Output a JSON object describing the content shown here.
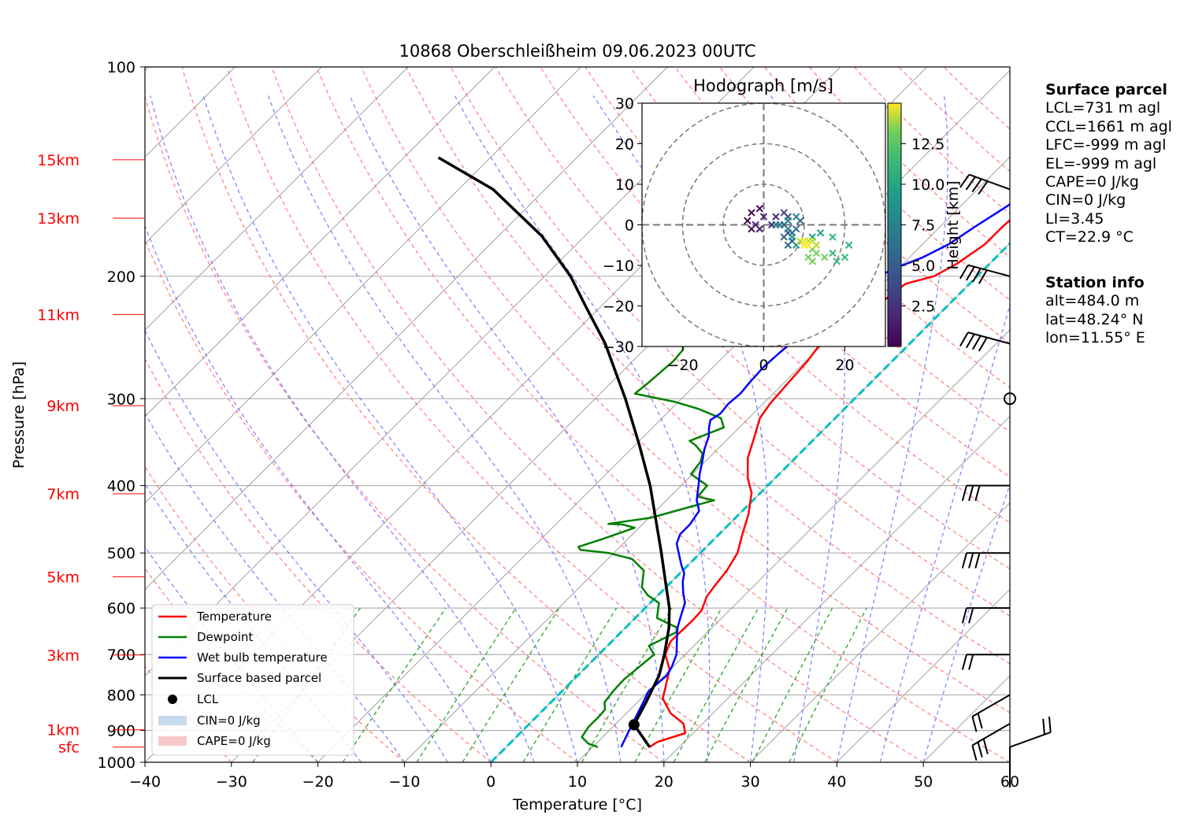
{
  "chart_data": [
    {
      "type": "line",
      "subtype": "skew-T log-p diagram",
      "title": "10868 Oberschleißheim 09.06.2023 00UTC",
      "xlabel": "Temperature [°C]",
      "ylabel": "Pressure [hPa]",
      "xlim": [
        -40,
        60
      ],
      "ylim": [
        1000,
        100
      ],
      "y_scale": "log",
      "grid": true,
      "x_ticks": [
        -40,
        -30,
        -20,
        -10,
        0,
        10,
        20,
        30,
        40,
        50,
        60
      ],
      "y_ticks": [
        100,
        200,
        300,
        400,
        500,
        600,
        700,
        800,
        900,
        1000
      ],
      "height_labels": [
        {
          "label": "15km",
          "p": 136
        },
        {
          "label": "13km",
          "p": 165
        },
        {
          "label": "11km",
          "p": 227
        },
        {
          "label": "9km",
          "p": 307
        },
        {
          "label": "7km",
          "p": 411
        },
        {
          "label": "5km",
          "p": 541
        },
        {
          "label": "3km",
          "p": 701
        },
        {
          "label": "1km",
          "p": 898
        },
        {
          "label": "sfc",
          "p": 951
        }
      ],
      "legend": {
        "position": "lower left",
        "entries": [
          "Temperature",
          "Dewpoint",
          "Wet bulb temperature",
          "Surface based parcel",
          "LCL",
          "CIN=0 J/kg",
          "CAPE=0 J/kg"
        ]
      },
      "colors": {
        "temperature": "#ff0000",
        "dewpoint": "#008000",
        "wetbulb": "#0000ff",
        "parcel": "#000000",
        "isotherm_zero": "#00bfbf",
        "dry_adiabats": "#ff6666",
        "moist_adiabats": "#6666ff",
        "mixing_ratio": "#2ca02c",
        "cin_fill": "#c6dbef",
        "cape_fill": "#f8c8c8"
      },
      "series": [
        {
          "name": "Temperature",
          "points": [
            [
              16.6,
              951
            ],
            [
              16.9,
              935
            ],
            [
              19.1,
              908
            ],
            [
              17.8,
              880
            ],
            [
              15.1,
              850
            ],
            [
              12.5,
              810
            ],
            [
              11.5,
              780
            ],
            [
              9.9,
              735
            ],
            [
              7.7,
              700
            ],
            [
              6.8,
              670
            ],
            [
              6.9,
              625
            ],
            [
              6.8,
              605
            ],
            [
              5.8,
              578
            ],
            [
              5.5,
              560
            ],
            [
              5.1,
              530
            ],
            [
              4.3,
              500
            ],
            [
              2.7,
              470
            ],
            [
              1.1,
              440
            ],
            [
              -1.0,
              410
            ],
            [
              -3.2,
              390
            ],
            [
              -5.5,
              365
            ],
            [
              -7.2,
              340
            ],
            [
              -8.7,
              320
            ],
            [
              -9.2,
              305
            ],
            [
              -9.5,
              285
            ],
            [
              -9.8,
              265
            ],
            [
              -10.3,
              250
            ],
            [
              -8.0,
              240
            ],
            [
              -8.3,
              228
            ],
            [
              -8.0,
              217
            ],
            [
              -7.4,
              205
            ],
            [
              -5.0,
              200
            ],
            [
              -3.8,
              192
            ],
            [
              -2.8,
              180
            ],
            [
              -2.8,
              170
            ],
            [
              -2.5,
              160
            ],
            [
              -1.0,
              153
            ],
            [
              -1.5,
              148
            ],
            [
              0.2,
              142
            ],
            [
              1.3,
              137
            ],
            [
              2.4,
              135
            ]
          ]
        },
        {
          "name": "Dewpoint",
          "points": [
            [
              10.6,
              951
            ],
            [
              9.1,
              940
            ],
            [
              7.6,
              920
            ],
            [
              7.2,
              890
            ],
            [
              7.2,
              860
            ],
            [
              7.1,
              840
            ],
            [
              6.2,
              820
            ],
            [
              5.9,
              790
            ],
            [
              5.8,
              760
            ],
            [
              6.4,
              700
            ],
            [
              4.8,
              680
            ],
            [
              6.4,
              650
            ],
            [
              5.9,
              640
            ],
            [
              2.5,
              620
            ],
            [
              1.0,
              590
            ],
            [
              -1.2,
              575
            ],
            [
              -2.8,
              560
            ],
            [
              -4.5,
              530
            ],
            [
              -7.2,
              510
            ],
            [
              -10.6,
              500
            ],
            [
              -14.2,
              495
            ],
            [
              -14.8,
              490
            ],
            [
              -13.0,
              478
            ],
            [
              -10.5,
              460
            ],
            [
              -12.3,
              455
            ],
            [
              -14.0,
              454
            ],
            [
              -9.8,
              445
            ],
            [
              -4.5,
              420
            ],
            [
              -6.8,
              415
            ],
            [
              -7.0,
              400
            ],
            [
              -10.2,
              385
            ],
            [
              -10.5,
              370
            ],
            [
              -11.2,
              360
            ],
            [
              -13.0,
              350
            ],
            [
              -14.2,
              345
            ],
            [
              -11.8,
              330
            ],
            [
              -13.2,
              320
            ],
            [
              -17.0,
              310
            ],
            [
              -20.5,
              303
            ],
            [
              -26.0,
              295
            ],
            [
              -25.7,
              285
            ],
            [
              -25.3,
              265
            ],
            [
              -25.5,
              255
            ],
            [
              -27.0,
              245
            ],
            [
              -28.0,
              238
            ],
            [
              -26.5,
              232
            ],
            [
              -27.5,
              228
            ],
            [
              -25.8,
              222
            ],
            [
              -25.3,
              210
            ],
            [
              -24.8,
              200
            ],
            [
              -25.0,
              193
            ],
            [
              -26.5,
              190
            ],
            [
              -28.7,
              188
            ],
            [
              -29.5,
              180
            ],
            [
              -30.0,
              175
            ],
            [
              -30.0,
              168
            ],
            [
              -29.5,
              160
            ],
            [
              -29.0,
              152
            ],
            [
              -28.0,
              148
            ],
            [
              -27.5,
              145
            ],
            [
              -26.5,
              140
            ],
            [
              -25.2,
              135
            ]
          ]
        },
        {
          "name": "Wet bulb temperature",
          "points": [
            [
              13.3,
              951
            ],
            [
              12.7,
              920
            ],
            [
              11.9,
              880
            ],
            [
              10.9,
              830
            ],
            [
              10.0,
              790
            ],
            [
              10.3,
              750
            ],
            [
              9.9,
              730
            ],
            [
              9.0,
              700
            ],
            [
              7.0,
              660
            ],
            [
              6.0,
              640
            ],
            [
              5.2,
              620
            ],
            [
              4.0,
              590
            ],
            [
              2.6,
              570
            ],
            [
              1.3,
              550
            ],
            [
              0.5,
              535
            ],
            [
              -1.0,
              518
            ],
            [
              -2.5,
              500
            ],
            [
              -3.8,
              485
            ],
            [
              -4.5,
              470
            ],
            [
              -4.5,
              455
            ],
            [
              -5.0,
              435
            ],
            [
              -6.5,
              420
            ],
            [
              -8.0,
              400
            ],
            [
              -9.2,
              385
            ],
            [
              -10.3,
              370
            ],
            [
              -11.5,
              355
            ],
            [
              -12.5,
              340
            ],
            [
              -13.5,
              330
            ],
            [
              -14.2,
              322
            ],
            [
              -13.8,
              315
            ],
            [
              -14.0,
              305
            ],
            [
              -13.8,
              295
            ],
            [
              -14.0,
              285
            ],
            [
              -14.2,
              270
            ],
            [
              -14.0,
              258
            ],
            [
              -13.8,
              250
            ],
            [
              -11.5,
              240
            ],
            [
              -12.0,
              230
            ],
            [
              -11.0,
              215
            ],
            [
              -11.3,
              200
            ],
            [
              -10.5,
              195
            ],
            [
              -8.5,
              188
            ],
            [
              -7.0,
              180
            ],
            [
              -6.0,
              170
            ],
            [
              -4.8,
              160
            ],
            [
              -4.0,
              153
            ],
            [
              -3.0,
              147
            ],
            [
              -1.5,
              142
            ],
            [
              0.0,
              137
            ],
            [
              1.5,
              135
            ]
          ]
        },
        {
          "name": "Surface based parcel",
          "points": [
            [
              16.6,
              951
            ],
            [
              12.2,
              883
            ],
            [
              11.0,
              820
            ],
            [
              9.4,
              750
            ],
            [
              7.6,
              700
            ],
            [
              5.0,
              640
            ],
            [
              2.8,
              600
            ],
            [
              -0.7,
              550
            ],
            [
              -4.5,
              500
            ],
            [
              -13.6,
              400
            ],
            [
              -19.5,
              350
            ],
            [
              -26.5,
              300
            ],
            [
              -35.2,
              250
            ],
            [
              -42.0,
              220
            ],
            [
              -47.0,
              200
            ],
            [
              -55.0,
              175
            ],
            [
              -66.0,
              150
            ],
            [
              -76.0,
              135
            ]
          ]
        }
      ],
      "lcl": {
        "temperature": 12.2,
        "pressure": 883
      },
      "wind_barbs_at_hpa": [
        951,
        880,
        800,
        700,
        600,
        500,
        400,
        300,
        250,
        200,
        150
      ]
    },
    {
      "type": "line",
      "subtype": "hodograph",
      "title": "Hodograph [m/s]",
      "xlim": [
        -30,
        30
      ],
      "ylim": [
        -30,
        30
      ],
      "x_ticks": [
        -20,
        0,
        20
      ],
      "y_ticks": [
        -30,
        -20,
        -10,
        0,
        10,
        20,
        30
      ],
      "rings": [
        10,
        20,
        30
      ],
      "colorbar": {
        "label": "Height [km]",
        "ticks": [
          2.5,
          5.0,
          7.5,
          10.0,
          12.5
        ],
        "range": [
          0,
          15
        ],
        "colormap": "viridis"
      },
      "points": [
        [
          -1,
          -1,
          0.2
        ],
        [
          -3,
          -1,
          0.5
        ],
        [
          -4,
          1,
          0.8
        ],
        [
          -3,
          3,
          1.1
        ],
        [
          -1,
          4,
          1.4
        ],
        [
          0,
          2,
          1.7
        ],
        [
          -2,
          0,
          2.0
        ],
        [
          -1,
          -1,
          2.3
        ],
        [
          2,
          0,
          2.6
        ],
        [
          3,
          2,
          2.9
        ],
        [
          5,
          3,
          3.2
        ],
        [
          6,
          2,
          3.5
        ],
        [
          5,
          0,
          3.8
        ],
        [
          6,
          -2,
          4.1
        ],
        [
          7,
          -4,
          4.4
        ],
        [
          6,
          -5,
          4.7
        ],
        [
          5,
          -3,
          5.0
        ],
        [
          7,
          -2,
          5.3
        ],
        [
          8,
          -1,
          5.6
        ],
        [
          9,
          1,
          5.9
        ],
        [
          8,
          2,
          6.2
        ],
        [
          6,
          1,
          6.5
        ],
        [
          4,
          0,
          6.8
        ],
        [
          3,
          0,
          7.1
        ],
        [
          6,
          -1,
          7.4
        ],
        [
          7,
          -3,
          7.7
        ],
        [
          8,
          -5,
          8.0
        ],
        [
          10,
          -4,
          8.3
        ],
        [
          12,
          -3,
          8.6
        ],
        [
          14,
          -2,
          8.9
        ],
        [
          17,
          -3,
          9.2
        ],
        [
          21,
          -5,
          9.5
        ],
        [
          20,
          -8,
          9.8
        ],
        [
          18,
          -9,
          10.1
        ],
        [
          17,
          -7,
          10.4
        ],
        [
          15,
          -8,
          10.7
        ],
        [
          13,
          -7,
          11.0
        ],
        [
          12,
          -9,
          11.3
        ],
        [
          11,
          -8,
          11.6
        ],
        [
          12,
          -6,
          11.9
        ],
        [
          13,
          -5,
          12.2
        ],
        [
          12,
          -4,
          12.5
        ],
        [
          11,
          -4,
          12.8
        ],
        [
          10,
          -5,
          13.1
        ],
        [
          9,
          -4,
          13.4
        ],
        [
          10,
          -4,
          13.7
        ],
        [
          11,
          -5,
          14.0
        ],
        [
          10,
          -5,
          14.4
        ]
      ]
    }
  ],
  "info": {
    "surface_title": "Surface parcel",
    "surface_lines": [
      "LCL=731 m agl",
      "CCL=1661 m agl",
      "LFC=-999 m agl",
      "EL=-999 m agl",
      "CAPE=0 J/kg",
      "CIN=0 J/kg",
      "LI=3.45",
      "CT=22.9 °C"
    ],
    "station_title": "Station info",
    "station_lines": [
      "alt=484.0 m",
      "lat=48.24° N",
      "lon=11.55° E"
    ]
  }
}
